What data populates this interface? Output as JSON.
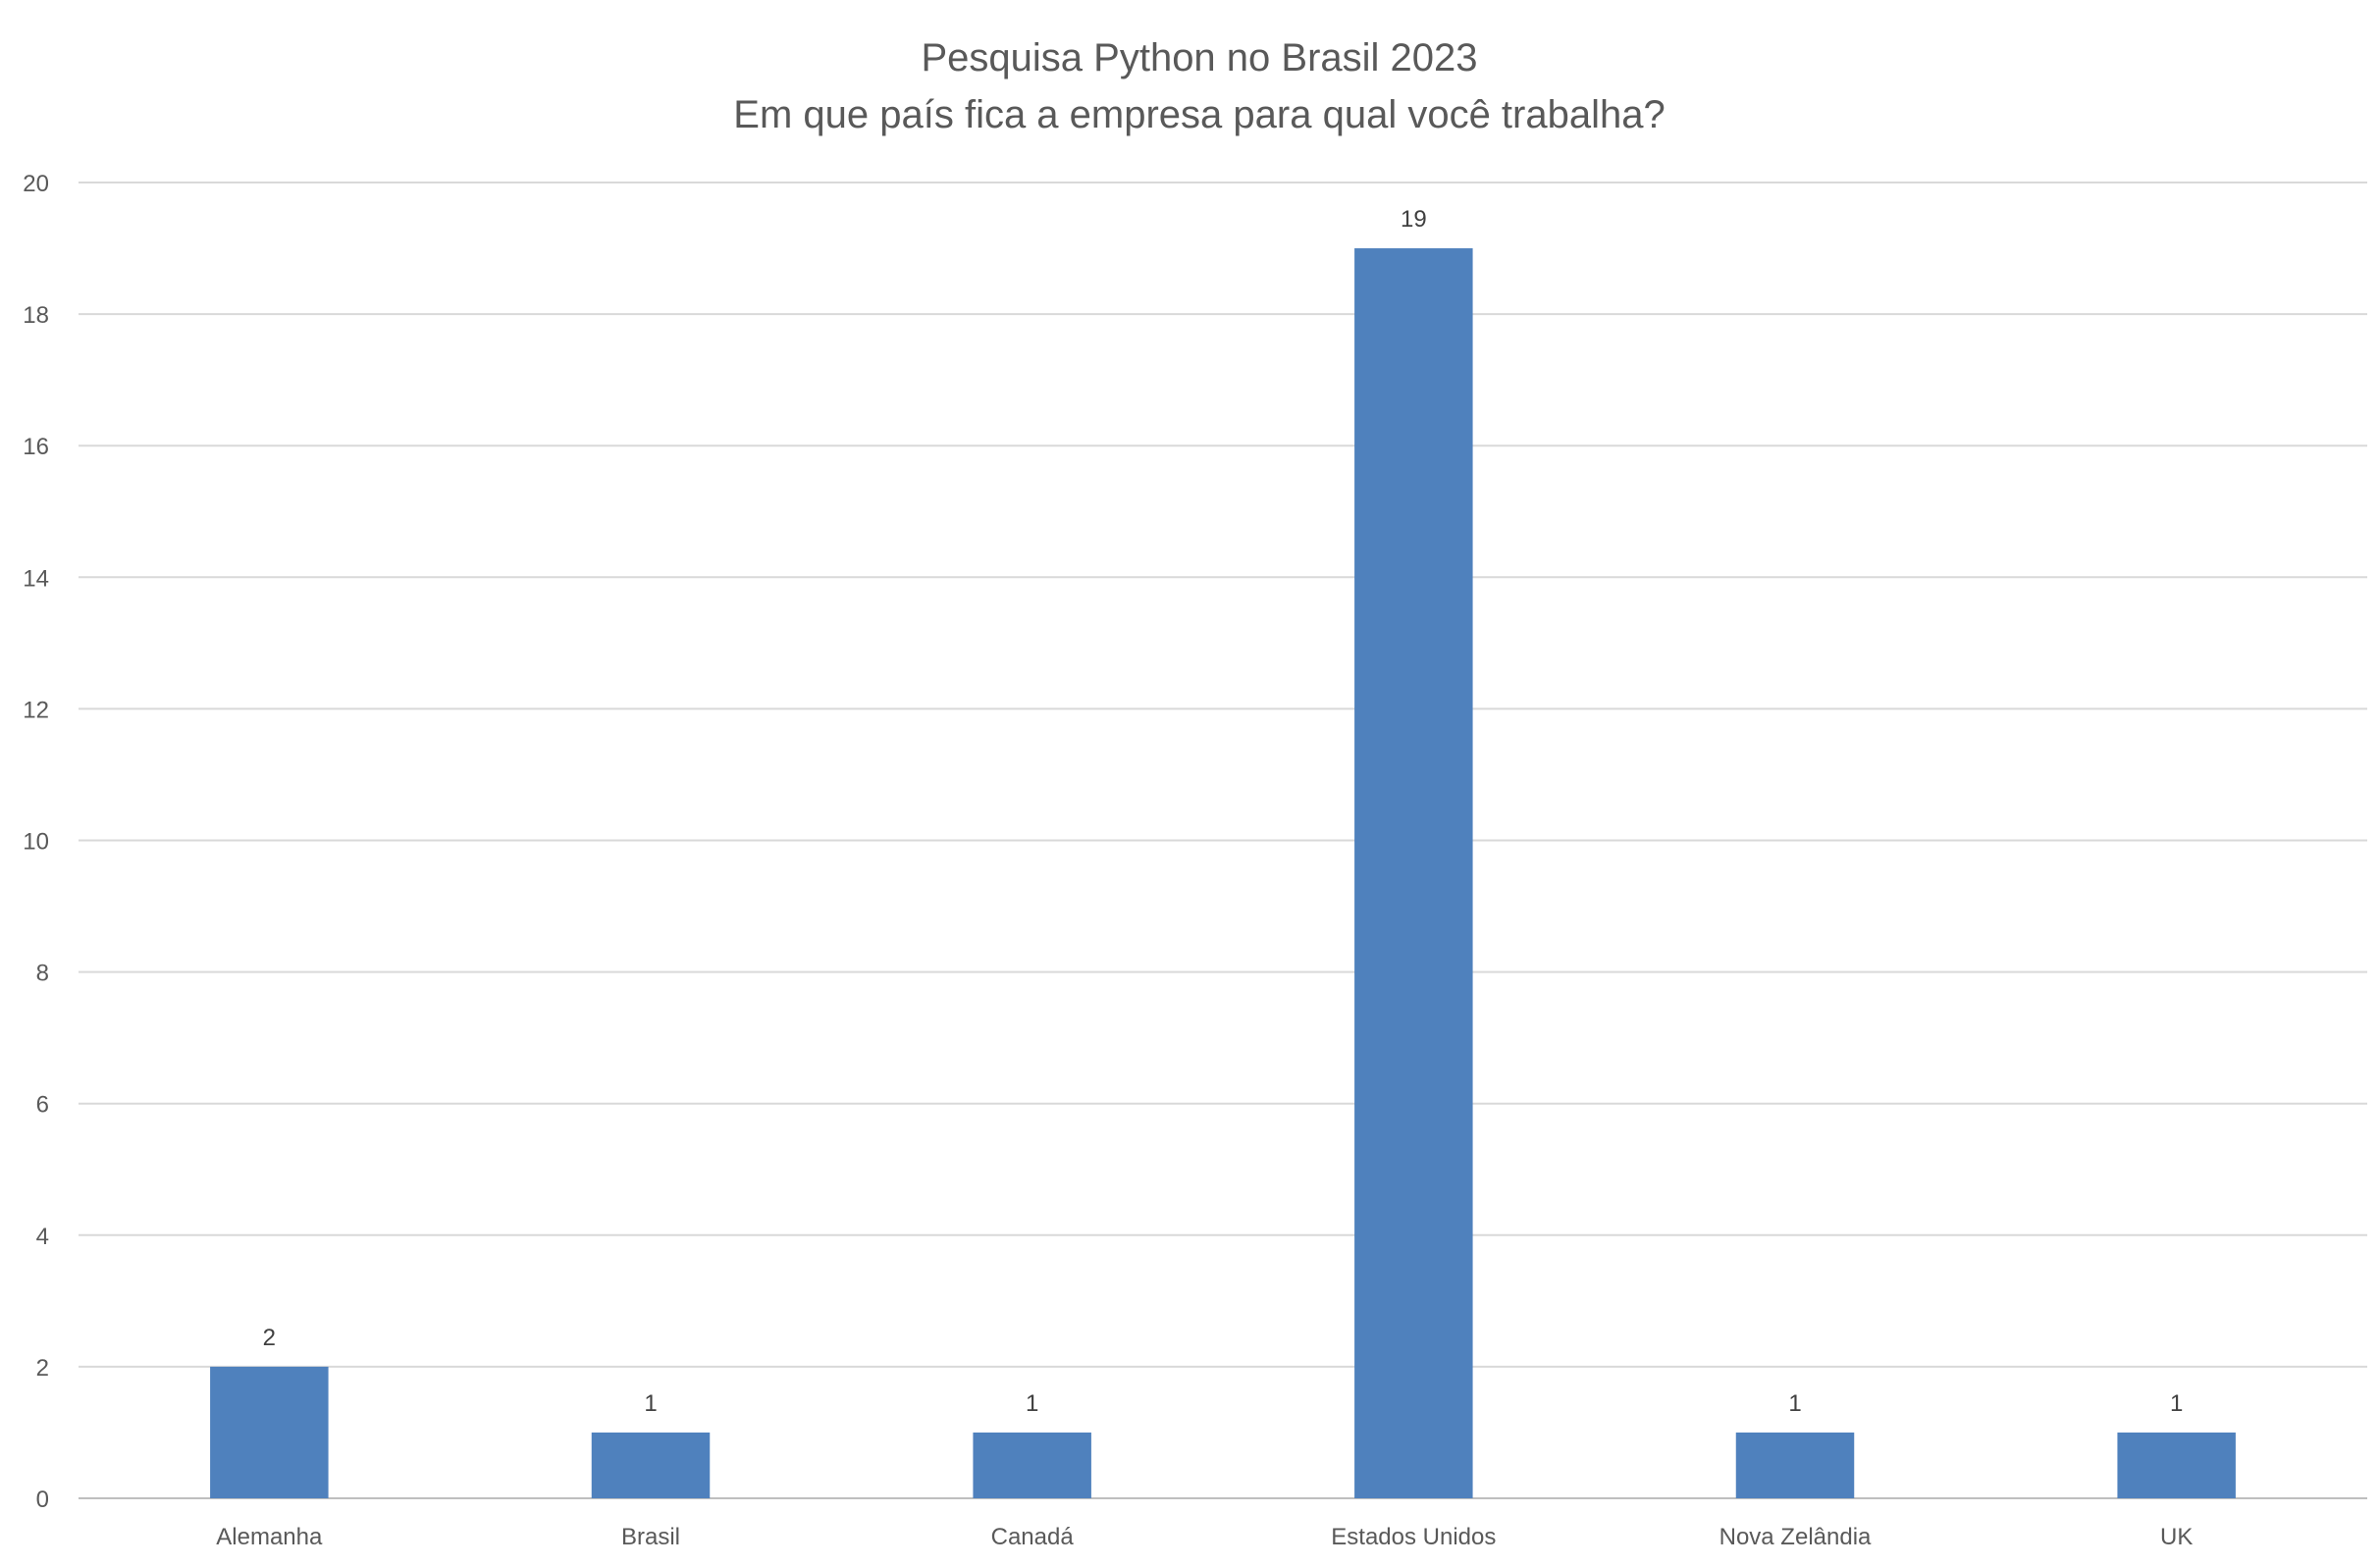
{
  "chart_data": {
    "type": "bar",
    "title": "Pesquisa Python no Brasil 2023",
    "subtitle": "Em que país fica a empresa para qual você trabalha?",
    "xlabel": "",
    "ylabel": "",
    "categories": [
      "Alemanha",
      "Brasil",
      "Canadá",
      "Estados Unidos",
      "Nova Zelândia",
      "UK"
    ],
    "values": [
      2,
      1,
      1,
      19,
      1,
      1
    ],
    "data_labels": [
      "2",
      "1",
      "1",
      "19",
      "1",
      "1"
    ],
    "y_ticks": [
      "0",
      "2",
      "4",
      "6",
      "8",
      "10",
      "12",
      "14",
      "16",
      "18",
      "20"
    ],
    "ylim": [
      0,
      20
    ],
    "grid": true,
    "legend": "none",
    "colors": {
      "bar": "#4F81BD",
      "grid": "#D9D9D9",
      "text": "#595959"
    }
  }
}
